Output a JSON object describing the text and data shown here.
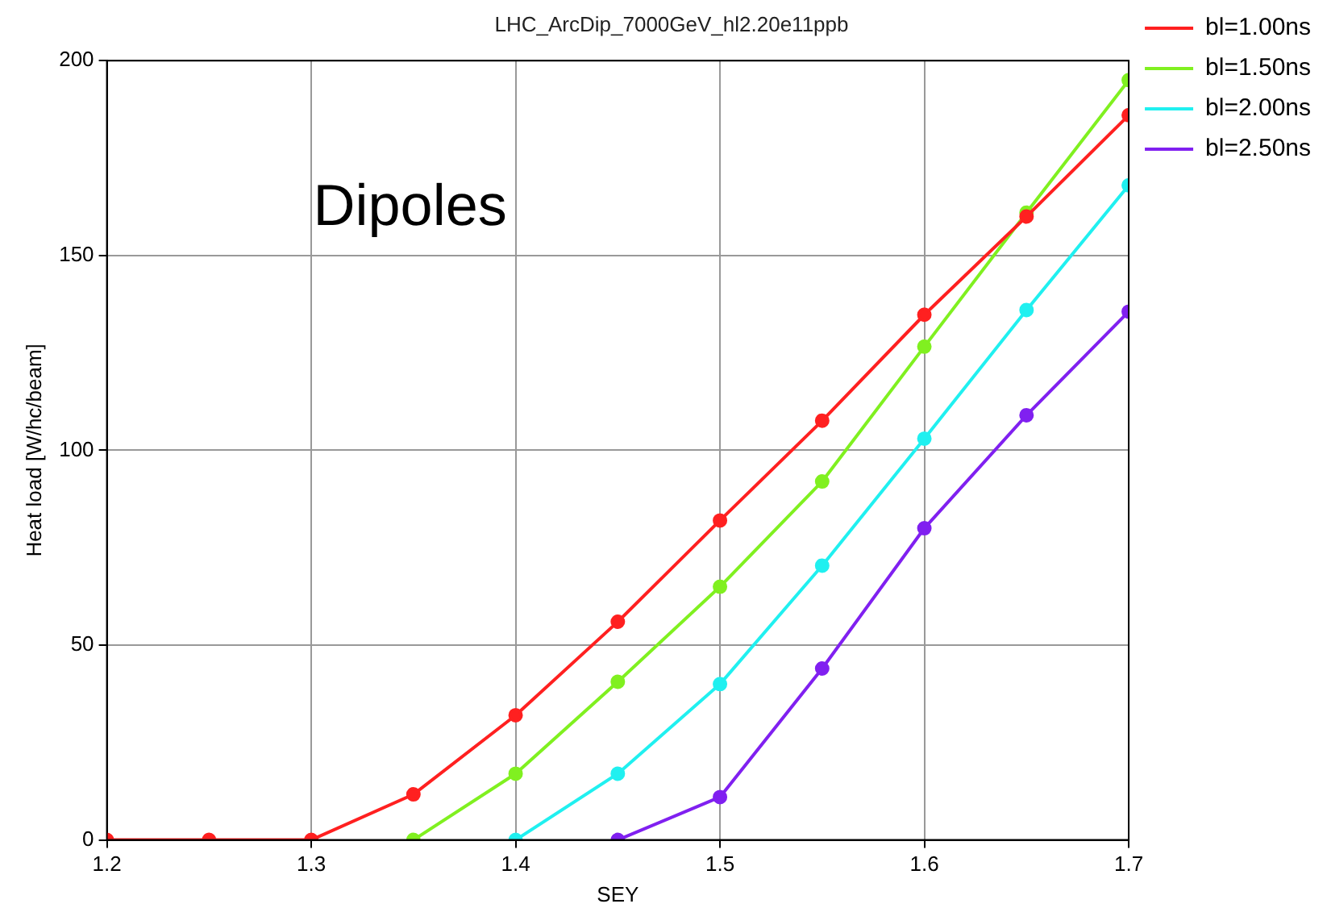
{
  "chart_data": {
    "type": "line",
    "title": "LHC_ArcDip_7000GeV_hl2.20e11ppb",
    "xlabel": "SEY",
    "ylabel": "Heat load [W/hc/beam]",
    "annotations": [
      "Dipoles"
    ],
    "x": [
      1.2,
      1.25,
      1.3,
      1.35,
      1.4,
      1.45,
      1.5,
      1.55,
      1.6,
      1.65,
      1.7
    ],
    "series": [
      {
        "name": "bl=1.00ns",
        "color": "#ff2020",
        "values": [
          0,
          0,
          0,
          11.7,
          32,
          56,
          82,
          107.6,
          134.8,
          160,
          186
        ]
      },
      {
        "name": "bl=1.50ns",
        "color": "#80f020",
        "values": [
          null,
          null,
          null,
          0,
          17,
          40.6,
          65,
          92,
          126.6,
          161,
          195
        ]
      },
      {
        "name": "bl=2.00ns",
        "color": "#20f0f0",
        "values": [
          null,
          null,
          null,
          null,
          0,
          17,
          40,
          70.4,
          103,
          136,
          168
        ]
      },
      {
        "name": "bl=2.50ns",
        "color": "#8020f0",
        "values": [
          null,
          null,
          null,
          null,
          null,
          0,
          11,
          44,
          80,
          109,
          135.6
        ]
      }
    ],
    "xlim": [
      1.2,
      1.7
    ],
    "xticks": [
      1.2,
      1.3,
      1.4,
      1.5,
      1.6,
      1.7
    ],
    "ylim": [
      0,
      200
    ],
    "yticks": [
      0,
      50,
      100,
      150,
      200
    ],
    "grid": true,
    "legend": "top right",
    "marker": "circle",
    "line_style": "solid"
  }
}
